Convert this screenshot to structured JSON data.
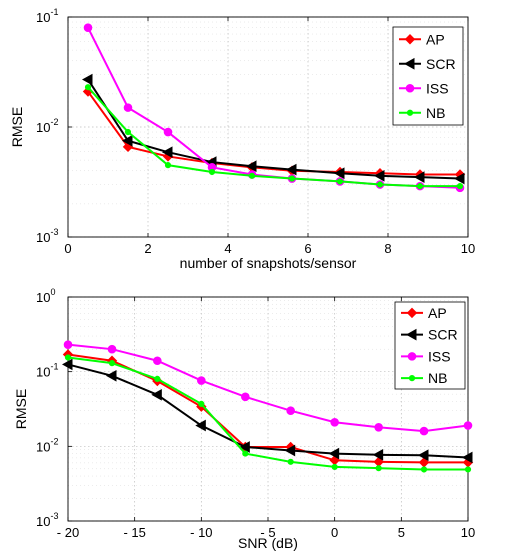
{
  "chart_data": [
    {
      "type": "line",
      "xlabel": "number of snapshots/sensor",
      "ylabel": "RMSE",
      "xscale": "linear",
      "yscale": "log",
      "xlim": [
        0,
        10
      ],
      "ylim": [
        0.001,
        0.1
      ],
      "xticks": [
        "0",
        "2",
        "4",
        "6",
        "8",
        "10"
      ],
      "yticks": [
        {
          "base": "10",
          "exp": "-3"
        },
        {
          "base": "10",
          "exp": "-2"
        },
        {
          "base": "10",
          "exp": "-1"
        }
      ],
      "grid": true,
      "legend_position": "top-right",
      "x": [
        0.5,
        1.5,
        2.5,
        3.6,
        4.6,
        5.6,
        6.8,
        7.8,
        8.8,
        9.8
      ],
      "series": [
        {
          "name": "AP",
          "color": "#ff0000",
          "marker": "diamond",
          "values": [
            0.021,
            0.0066,
            0.0054,
            0.0047,
            0.0043,
            0.004,
            0.0039,
            0.0038,
            0.0037,
            0.0037
          ]
        },
        {
          "name": "SCR",
          "color": "#000000",
          "marker": "triangle-left",
          "values": [
            0.027,
            0.0075,
            0.0059,
            0.0048,
            0.0044,
            0.0041,
            0.0038,
            0.0036,
            0.0035,
            0.0034
          ]
        },
        {
          "name": "ISS",
          "color": "#ff00ff",
          "marker": "circle",
          "values": [
            0.08,
            0.015,
            0.009,
            0.0043,
            0.0037,
            0.0034,
            0.0032,
            0.003,
            0.0029,
            0.0028
          ]
        },
        {
          "name": "NB",
          "color": "#00ff00",
          "marker": "circle-small",
          "values": [
            0.023,
            0.009,
            0.0045,
            0.0039,
            0.0036,
            0.0034,
            0.0032,
            0.003,
            0.0029,
            0.0029
          ]
        }
      ]
    },
    {
      "type": "line",
      "xlabel": "SNR (dB)",
      "ylabel": "RMSE",
      "xscale": "linear",
      "yscale": "log",
      "xlim": [
        -20,
        10
      ],
      "ylim": [
        0.001,
        1
      ],
      "xticks": [
        "- 20",
        "- 15",
        "- 10",
        "- 5",
        "0",
        "5",
        "10"
      ],
      "yticks": [
        {
          "base": "10",
          "exp": "-3"
        },
        {
          "base": "10",
          "exp": "-2"
        },
        {
          "base": "10",
          "exp": "-1"
        },
        {
          "base": "10",
          "exp": "0"
        }
      ],
      "grid": true,
      "legend_position": "top-right",
      "x": [
        -20,
        -16.7,
        -13.3,
        -10,
        -6.7,
        -3.3,
        0,
        3.3,
        6.7,
        10
      ],
      "series": [
        {
          "name": "AP",
          "color": "#ff0000",
          "marker": "diamond",
          "values": [
            0.17,
            0.14,
            0.075,
            0.034,
            0.0098,
            0.0098,
            0.0065,
            0.0062,
            0.0061,
            0.0061
          ]
        },
        {
          "name": "SCR",
          "color": "#000000",
          "marker": "triangle-left",
          "values": [
            0.125,
            0.088,
            0.049,
            0.019,
            0.0098,
            0.0088,
            0.008,
            0.0077,
            0.0076,
            0.0071
          ]
        },
        {
          "name": "ISS",
          "color": "#ff00ff",
          "marker": "circle",
          "values": [
            0.23,
            0.2,
            0.14,
            0.076,
            0.046,
            0.03,
            0.021,
            0.018,
            0.016,
            0.019
          ]
        },
        {
          "name": "NB",
          "color": "#00ff00",
          "marker": "circle-small",
          "values": [
            0.155,
            0.13,
            0.08,
            0.037,
            0.008,
            0.0062,
            0.0053,
            0.0051,
            0.0049,
            0.0049
          ]
        }
      ]
    }
  ]
}
